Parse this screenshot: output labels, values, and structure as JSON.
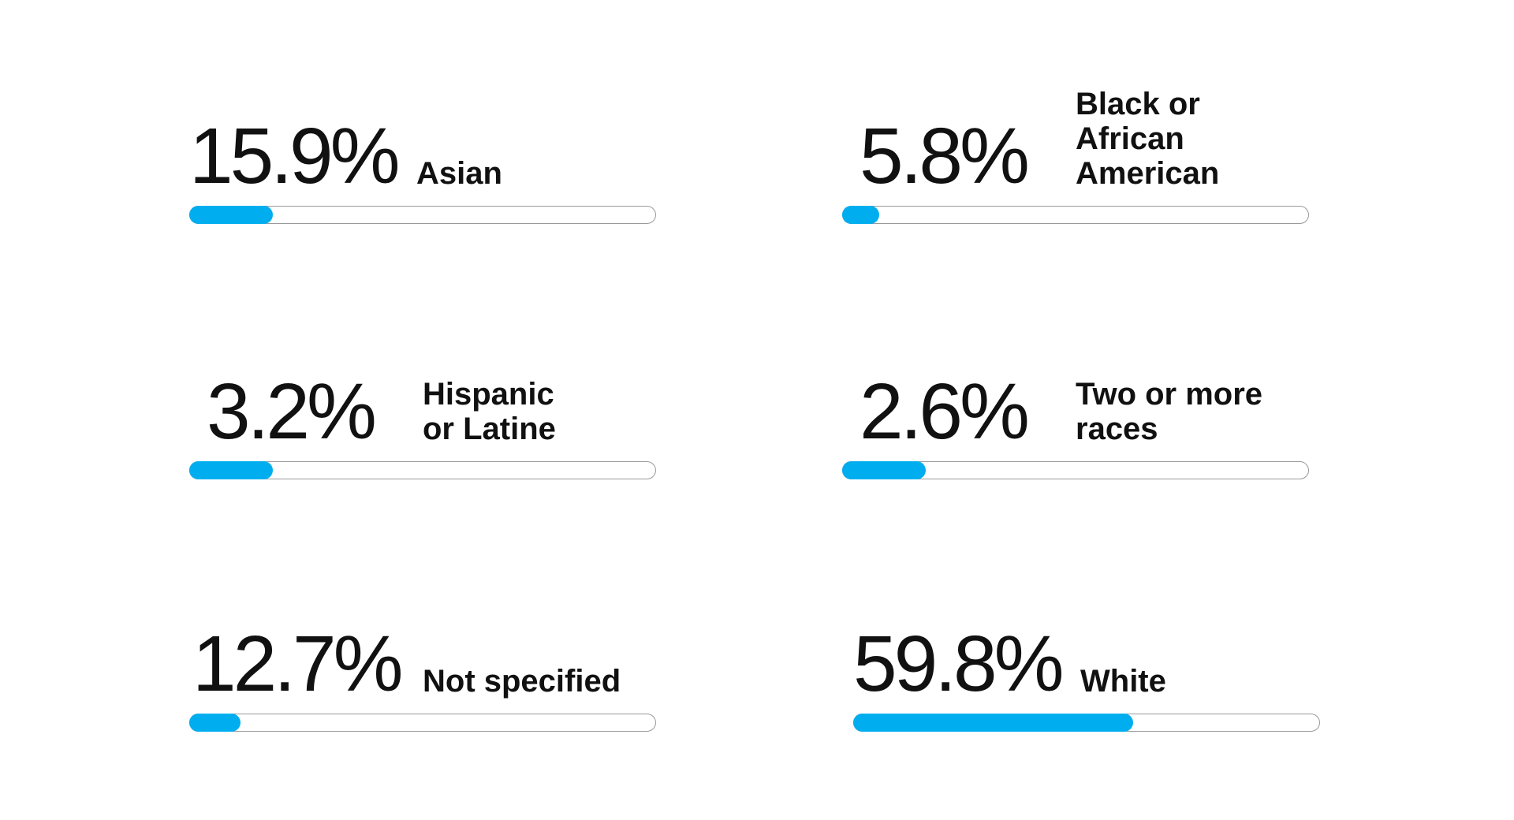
{
  "colors": {
    "fill": "#00AEEF",
    "track_border": "#9A9A9A",
    "text": "#111111"
  },
  "chart_data": {
    "type": "bar",
    "categories": [
      "Asian",
      "Black or African American",
      "Hispanic or Latine",
      "Two or more races",
      "Not specified",
      "White"
    ],
    "values": [
      15.9,
      5.8,
      3.2,
      2.6,
      12.7,
      59.8
    ],
    "unit": "%",
    "fill_fraction": [
      0.18,
      0.08,
      0.18,
      0.18,
      0.11,
      0.6
    ],
    "items": [
      {
        "value_label": "15.9%",
        "label": "Asian"
      },
      {
        "value_label": "5.8%",
        "label": "Black or African\nAmerican"
      },
      {
        "value_label": "3.2%",
        "label": "Hispanic\nor Latine"
      },
      {
        "value_label": "2.6%",
        "label": "Two or more\nraces"
      },
      {
        "value_label": "12.7%",
        "label": "Not specified"
      },
      {
        "value_label": "59.8%",
        "label": "White"
      }
    ]
  }
}
